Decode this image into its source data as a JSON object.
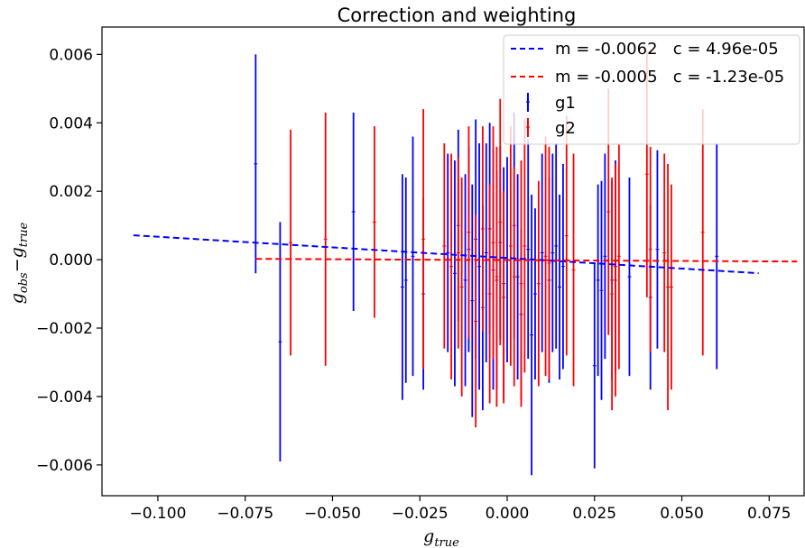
{
  "chart_data": {
    "type": "scatter",
    "title": "Correction and weighting",
    "xlabel": {
      "main": "g",
      "sub": "true"
    },
    "ylabel": {
      "main1": "g",
      "sub1": "obs",
      "minus": "−",
      "main2": "g",
      "sub2": "true"
    },
    "xlim": [
      -0.116,
      0.085
    ],
    "ylim": [
      -0.0069,
      0.0068
    ],
    "xticks": [
      -0.1,
      -0.075,
      -0.05,
      -0.025,
      0.0,
      0.025,
      0.05,
      0.075
    ],
    "xtick_labels": [
      "−0.100",
      "−0.075",
      "−0.050",
      "−0.025",
      "0.000",
      "0.025",
      "0.050",
      "0.075"
    ],
    "yticks": [
      -0.006,
      -0.004,
      -0.002,
      0.0,
      0.002,
      0.004,
      0.006
    ],
    "ytick_labels": [
      "−0.006",
      "−0.004",
      "−0.002",
      "0.000",
      "0.002",
      "0.004",
      "0.006"
    ],
    "grid": false,
    "legend_position": "top-right",
    "fit_lines": [
      {
        "label": "m = -0.0062   c = 4.96e-05",
        "color": "#0000ff",
        "m": -0.0062,
        "c": 4.96e-05,
        "x_range": [
          -0.107,
          0.072
        ]
      },
      {
        "label": "m = -0.0005   c = -1.23e-05",
        "color": "#ff0000",
        "m": -0.0005,
        "c": -1.23e-05,
        "x_range": [
          -0.072,
          0.083
        ]
      }
    ],
    "series": [
      {
        "name": "g1",
        "color": "#0000ff",
        "x": [
          -0.072,
          -0.065,
          -0.044,
          -0.03,
          -0.029,
          -0.027,
          -0.024,
          -0.017,
          -0.015,
          -0.014,
          -0.012,
          -0.011,
          -0.01,
          -0.009,
          -0.008,
          -0.007,
          -0.006,
          -0.005,
          -0.004,
          -0.003,
          -0.002,
          -0.001,
          0.0,
          0.002,
          0.003,
          0.004,
          0.006,
          0.007,
          0.008,
          0.01,
          0.012,
          0.013,
          0.014,
          0.015,
          0.016,
          0.025,
          0.026,
          0.027,
          0.028,
          0.03,
          0.031,
          0.035,
          0.041,
          0.043,
          0.06
        ],
        "y": [
          0.0028,
          -0.0024,
          0.0014,
          -0.0008,
          -0.0006,
          0.0001,
          -0.001,
          0.0002,
          -0.0004,
          0.001,
          -0.0006,
          0.0003,
          -0.0012,
          0.0006,
          -0.0002,
          -0.0014,
          0.0002,
          0.0009,
          -0.0003,
          -0.0006,
          0.0005,
          -0.0007,
          0.0,
          0.001,
          -0.0005,
          -0.0016,
          0.0003,
          -0.0022,
          -0.001,
          0.0002,
          -0.0006,
          0.0002,
          0.0004,
          -0.0008,
          -0.0002,
          -0.0031,
          -0.0006,
          -0.0009,
          0.0001,
          -0.0006,
          -0.0002,
          -0.0005,
          -0.0011,
          0.0003,
          0.0001
        ],
        "yerr": [
          0.0032,
          0.0035,
          0.0029,
          0.0033,
          0.003,
          0.0035,
          0.0028,
          0.0029,
          0.0033,
          0.0028,
          0.0031,
          0.003,
          0.0034,
          0.0035,
          0.0036,
          0.003,
          0.0032,
          0.0031,
          0.0035,
          0.0032,
          0.0028,
          0.0034,
          0.003,
          0.0033,
          0.003,
          0.0025,
          0.0032,
          0.0041,
          0.0025,
          0.0029,
          0.003,
          0.0029,
          0.003,
          0.0027,
          0.003,
          0.003,
          0.0028,
          0.0032,
          0.003,
          0.0029,
          0.0031,
          0.0029,
          0.0027,
          0.0029,
          0.0033
        ]
      },
      {
        "name": "g2",
        "color": "#ff0000",
        "x": [
          -0.062,
          -0.052,
          -0.038,
          -0.024,
          -0.018,
          -0.016,
          -0.014,
          -0.013,
          -0.011,
          -0.009,
          -0.007,
          -0.005,
          -0.004,
          -0.003,
          -0.002,
          -0.001,
          0.001,
          0.002,
          0.004,
          0.005,
          0.009,
          0.011,
          0.012,
          0.017,
          0.019,
          0.029,
          0.03,
          0.031,
          0.032,
          0.04,
          0.041,
          0.045,
          0.046,
          0.047,
          0.056
        ],
        "y": [
          0.0005,
          0.0006,
          0.0011,
          0.0006,
          0.0004,
          -0.0002,
          0.0002,
          -0.0008,
          0.0008,
          -0.0018,
          0.0009,
          -0.001,
          0.0005,
          -0.0005,
          0.0011,
          -0.0011,
          0.0004,
          -0.0005,
          -0.0007,
          0.0004,
          -0.0007,
          0.0001,
          -0.0001,
          0.0007,
          -0.0003,
          0.0014,
          -0.001,
          -0.0006,
          0.0001,
          0.0025,
          0.0003,
          0.0002,
          -0.0008,
          -0.0008,
          0.0008
        ],
        "yerr": [
          0.0033,
          0.0037,
          0.0028,
          0.0038,
          0.003,
          0.0033,
          0.0028,
          0.0032,
          0.0031,
          0.0031,
          0.003,
          0.0032,
          0.0034,
          0.0038,
          0.0036,
          0.0031,
          0.0035,
          0.0032,
          0.0036,
          0.0037,
          0.003,
          0.0035,
          0.0034,
          0.0035,
          0.0034,
          0.0036,
          0.0034,
          0.0034,
          0.0033,
          0.0036,
          0.003,
          0.0029,
          0.0036,
          0.003,
          0.0036
        ]
      }
    ]
  }
}
